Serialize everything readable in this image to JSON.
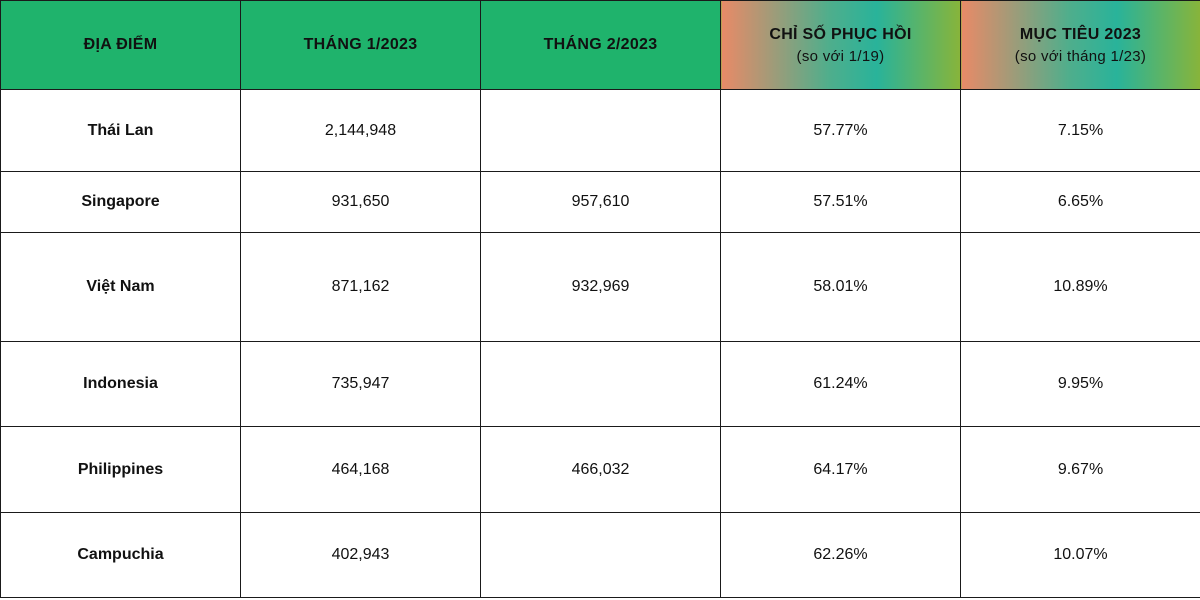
{
  "header": {
    "col1": "ĐỊA ĐIỂM",
    "col2": "THÁNG 1/2023",
    "col3": "THÁNG 2/2023",
    "col4": {
      "title": "CHỈ SỐ PHỤC HỒI",
      "sub": "(so với 1/19)"
    },
    "col5": {
      "title": "MỤC TIÊU 2023",
      "sub": "(so với tháng 1/23)"
    }
  },
  "rows": [
    {
      "place": "Thái Lan",
      "jan": "2,144,948",
      "feb": "",
      "recovery": "57.77%",
      "target": "7.15%"
    },
    {
      "place": "Singapore",
      "jan": "931,650",
      "feb": "957,610",
      "recovery": "57.51%",
      "target": "6.65%"
    },
    {
      "place": "Việt Nam",
      "jan": "871,162",
      "feb": "932,969",
      "recovery": "58.01%",
      "target": "10.89%"
    },
    {
      "place": "Indonesia",
      "jan": "735,947",
      "feb": "",
      "recovery": "61.24%",
      "target": "9.95%"
    },
    {
      "place": "Philippines",
      "jan": "464,168",
      "feb": "466,032",
      "recovery": "64.17%",
      "target": "9.67%"
    },
    {
      "place": "Campuchia",
      "jan": "402,943",
      "feb": "",
      "recovery": "62.26%",
      "target": "10.07%"
    }
  ],
  "colors": {
    "header_green": "#1fb36c",
    "gradient_start": "#e98a67",
    "gradient_end": "#88b43a",
    "border": "#1a1a1a"
  }
}
